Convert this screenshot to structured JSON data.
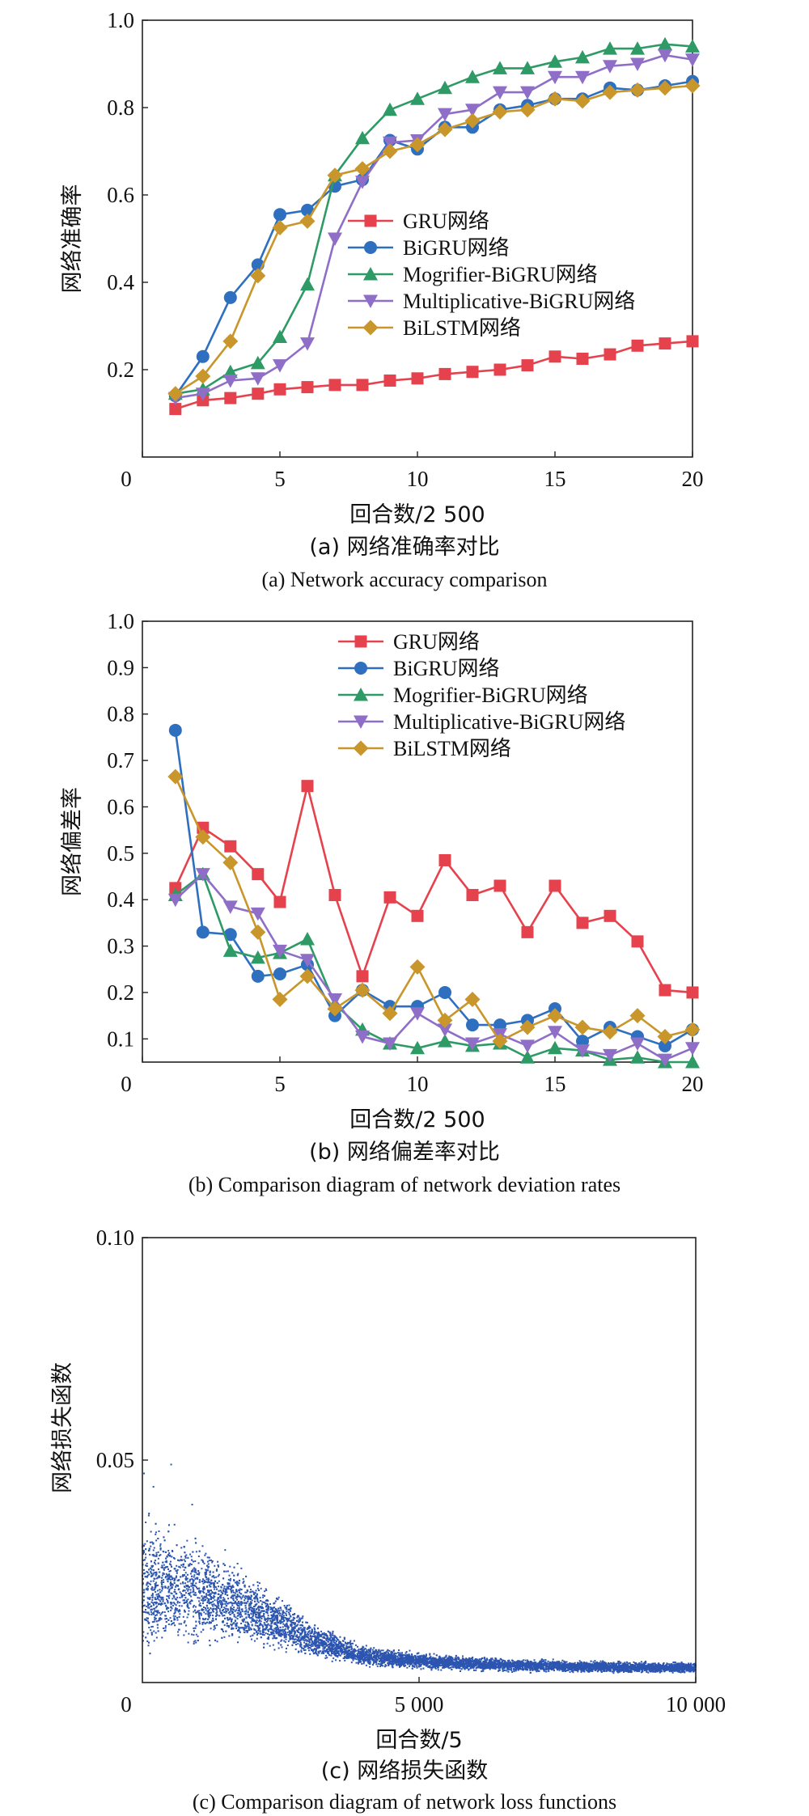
{
  "chart_data": [
    {
      "type": "line",
      "title": "",
      "xlabel": "回合数/2 500",
      "ylabel": "网络准确率",
      "caption_cn": "(a) 网络准确率对比",
      "caption_en": "(a) Network accuracy comparison",
      "xlim": [
        0,
        20
      ],
      "ylim": [
        0,
        1.0
      ],
      "xticks": [
        "0",
        "5",
        "10",
        "15",
        "20"
      ],
      "yticks": [
        "0.2",
        "0.4",
        "0.6",
        "0.8",
        "1.0"
      ],
      "x": [
        1.2,
        2.2,
        3.2,
        4.2,
        5.0,
        6.0,
        7.0,
        8.0,
        9.0,
        10.0,
        11.0,
        12.0,
        13.0,
        14.0,
        15.0,
        16.0,
        17.0,
        18.0,
        19.0,
        20.0
      ],
      "legend_position": "center-right",
      "series": [
        {
          "name": "GRU网络",
          "color": "#e5424d",
          "marker": "square",
          "values": [
            0.11,
            0.13,
            0.135,
            0.145,
            0.155,
            0.16,
            0.165,
            0.165,
            0.175,
            0.18,
            0.19,
            0.195,
            0.2,
            0.21,
            0.23,
            0.225,
            0.235,
            0.255,
            0.26,
            0.265
          ]
        },
        {
          "name": "BiGRU网络",
          "color": "#2e6fc0",
          "marker": "circle",
          "values": [
            0.14,
            0.23,
            0.365,
            0.44,
            0.555,
            0.565,
            0.62,
            0.635,
            0.725,
            0.705,
            0.755,
            0.755,
            0.795,
            0.805,
            0.82,
            0.82,
            0.845,
            0.84,
            0.85,
            0.86
          ]
        },
        {
          "name": "Mogrifier-BiGRU网络",
          "color": "#2e9a66",
          "marker": "triangle-up",
          "values": [
            0.145,
            0.155,
            0.195,
            0.215,
            0.275,
            0.395,
            0.645,
            0.73,
            0.795,
            0.82,
            0.845,
            0.87,
            0.89,
            0.89,
            0.905,
            0.915,
            0.935,
            0.935,
            0.945,
            0.94
          ]
        },
        {
          "name": "Multiplicative-BiGRU网络",
          "color": "#8f6ec7",
          "marker": "triangle-down",
          "values": [
            0.135,
            0.145,
            0.175,
            0.18,
            0.21,
            0.26,
            0.5,
            0.63,
            0.72,
            0.725,
            0.785,
            0.795,
            0.835,
            0.835,
            0.87,
            0.87,
            0.895,
            0.9,
            0.92,
            0.91
          ]
        },
        {
          "name": "BiLSTM网络",
          "color": "#c8962a",
          "marker": "diamond",
          "values": [
            0.145,
            0.185,
            0.265,
            0.415,
            0.525,
            0.54,
            0.645,
            0.66,
            0.7,
            0.715,
            0.75,
            0.77,
            0.79,
            0.795,
            0.82,
            0.815,
            0.835,
            0.84,
            0.845,
            0.85
          ]
        }
      ]
    },
    {
      "type": "line",
      "title": "",
      "xlabel": "回合数/2 500",
      "ylabel": "网络偏差率",
      "caption_cn": "(b) 网络偏差率对比",
      "caption_en": "(b) Comparison diagram of network deviation rates",
      "xlim": [
        0,
        20
      ],
      "ylim": [
        0.05,
        1.0
      ],
      "xticks": [
        "0",
        "5",
        "10",
        "15",
        "20"
      ],
      "yticks": [
        "0.1",
        "0.2",
        "0.3",
        "0.4",
        "0.5",
        "0.6",
        "0.7",
        "0.8",
        "0.9",
        "1.0"
      ],
      "x": [
        1.2,
        2.2,
        3.2,
        4.2,
        5.0,
        6.0,
        7.0,
        8.0,
        9.0,
        10.0,
        11.0,
        12.0,
        13.0,
        14.0,
        15.0,
        16.0,
        17.0,
        18.0,
        19.0,
        20.0
      ],
      "legend_position": "top-right",
      "series": [
        {
          "name": "GRU网络",
          "color": "#e5424d",
          "marker": "square",
          "values": [
            0.425,
            0.555,
            0.515,
            0.455,
            0.395,
            0.645,
            0.41,
            0.235,
            0.405,
            0.365,
            0.485,
            0.41,
            0.43,
            0.33,
            0.43,
            0.35,
            0.365,
            0.31,
            0.205,
            0.2
          ]
        },
        {
          "name": "BiGRU网络",
          "color": "#2e6fc0",
          "marker": "circle",
          "values": [
            0.765,
            0.33,
            0.325,
            0.235,
            0.24,
            0.26,
            0.15,
            0.205,
            0.17,
            0.17,
            0.2,
            0.13,
            0.13,
            0.14,
            0.165,
            0.095,
            0.125,
            0.105,
            0.085,
            0.12
          ]
        },
        {
          "name": "Mogrifier-BiGRU网络",
          "color": "#2e9a66",
          "marker": "triangle-up",
          "values": [
            0.41,
            0.455,
            0.29,
            0.275,
            0.285,
            0.315,
            0.175,
            0.12,
            0.09,
            0.08,
            0.095,
            0.085,
            0.09,
            0.06,
            0.08,
            0.075,
            0.055,
            0.06,
            0.05,
            0.05
          ]
        },
        {
          "name": "Multiplicative-BiGRU网络",
          "color": "#8f6ec7",
          "marker": "triangle-down",
          "values": [
            0.4,
            0.455,
            0.385,
            0.37,
            0.29,
            0.27,
            0.185,
            0.105,
            0.09,
            0.155,
            0.12,
            0.09,
            0.11,
            0.085,
            0.115,
            0.075,
            0.065,
            0.09,
            0.055,
            0.08
          ]
        },
        {
          "name": "BiLSTM网络",
          "color": "#c8962a",
          "marker": "diamond",
          "values": [
            0.665,
            0.535,
            0.48,
            0.33,
            0.185,
            0.235,
            0.165,
            0.205,
            0.155,
            0.255,
            0.14,
            0.185,
            0.095,
            0.125,
            0.15,
            0.125,
            0.115,
            0.15,
            0.105,
            0.12
          ]
        }
      ]
    },
    {
      "type": "scatter",
      "title": "",
      "xlabel": "回合数/5",
      "ylabel": "网络损失函数",
      "caption_cn": "(c) 网络损失函数",
      "caption_en": "(c) Comparison diagram of network loss functions",
      "xlim": [
        0,
        10000
      ],
      "ylim": [
        0,
        0.1
      ],
      "xticks": [
        "5 000",
        "10 000"
      ],
      "yticks": [
        "0.05",
        "0.10"
      ],
      "origin_label": "0",
      "color": "#2c55b0",
      "points_description": "10000 loss samples; density starts near 0.02-0.03 with outliers up to 0.05, decays to ~0.005 by x=4000 and ~0.003 by x=10000",
      "trend": {
        "x": [
          0,
          1000,
          2000,
          3000,
          4000,
          5000,
          6000,
          7000,
          8000,
          9000,
          10000
        ],
        "y": [
          0.022,
          0.02,
          0.016,
          0.01,
          0.006,
          0.0048,
          0.0042,
          0.0038,
          0.0036,
          0.0034,
          0.0033
        ]
      }
    }
  ]
}
